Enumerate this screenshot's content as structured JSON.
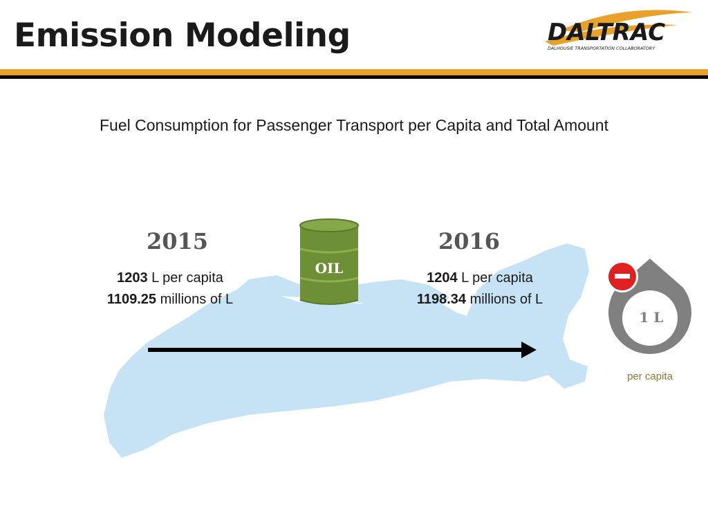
{
  "header": {
    "title": "Emission Modeling",
    "logo_text": "DALTRAC",
    "logo_tagline": "DALHOUSIE TRANSPORTATION COLLABORATORY"
  },
  "colors": {
    "accent_gold": "#e8a229",
    "map_blue": "#c6e2f5",
    "barrel_green": "#6e8f36",
    "gauge_gray": "#808080",
    "minus_red": "#e02020"
  },
  "subtitle": "Fuel Consumption for Passenger Transport per Capita and Total Amount",
  "barrel_label": "OIL",
  "years": [
    {
      "year": "2015",
      "per_capita_value": "1203",
      "per_capita_unit": "L per capita",
      "total_value": "1109.25",
      "total_unit": "millions of L"
    },
    {
      "year": "2016",
      "per_capita_value": "1204",
      "per_capita_unit": "L per capita",
      "total_value": "1198.34",
      "total_unit": "millions of L"
    }
  ],
  "gauge": {
    "value_label": "1 L",
    "caption": "per capita",
    "icon": "minus-icon"
  }
}
